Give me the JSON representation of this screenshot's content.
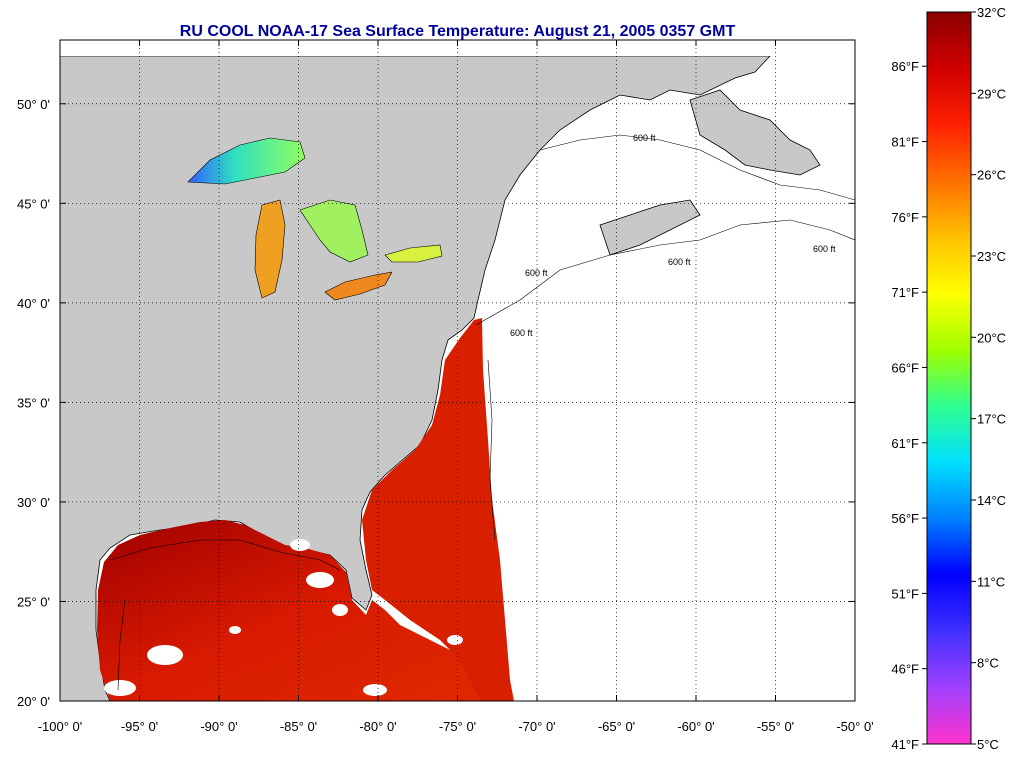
{
  "title": "RU COOL  NOAA-17  Sea Surface Temperature:  August 21, 2005 0357 GMT",
  "lat_labels": [
    "50° 0'",
    "45° 0'",
    "40° 0'",
    "35° 0'",
    "30° 0'",
    "25° 0'",
    "20° 0'"
  ],
  "lat_values": [
    50,
    45,
    40,
    35,
    30,
    25,
    20
  ],
  "lon_labels": [
    "-100° 0'",
    "-95° 0'",
    "-90° 0'",
    "-85° 0'",
    "-80° 0'",
    "-75° 0'",
    "-70° 0'",
    "-65° 0'",
    "-60° 0'",
    "-55° 0'",
    "-50° 0'"
  ],
  "lon_values": [
    -100,
    -95,
    -90,
    -85,
    -80,
    -75,
    -70,
    -65,
    -60,
    -55,
    -50
  ],
  "lat_range": [
    20,
    52.4
  ],
  "lon_range": [
    -100,
    -50
  ],
  "depth_contour_label": "600 ft",
  "colorbar": {
    "celsius_labels": [
      "32°C",
      "29°C",
      "26°C",
      "23°C",
      "20°C",
      "17°C",
      "14°C",
      "11°C",
      "8°C",
      "5°C"
    ],
    "fahrenheit_labels": [
      "86°F",
      "81°F",
      "76°F",
      "71°F",
      "66°F",
      "61°F",
      "56°F",
      "51°F",
      "46°F",
      "41°F"
    ],
    "celsius_range": [
      5,
      32
    ],
    "colors": [
      "#ff33cc",
      "#a040ff",
      "#4030ff",
      "#0000ff",
      "#0080ff",
      "#00e0ff",
      "#30ff90",
      "#a0ff00",
      "#ffff00",
      "#ffc000",
      "#ff7000",
      "#ff2000",
      "#d00000",
      "#8b0000"
    ]
  },
  "colors": {
    "land": "#c8c8c8",
    "ocean_no_data": "#ffffff",
    "title": "#00009c",
    "sst_warm": "#d01000"
  }
}
